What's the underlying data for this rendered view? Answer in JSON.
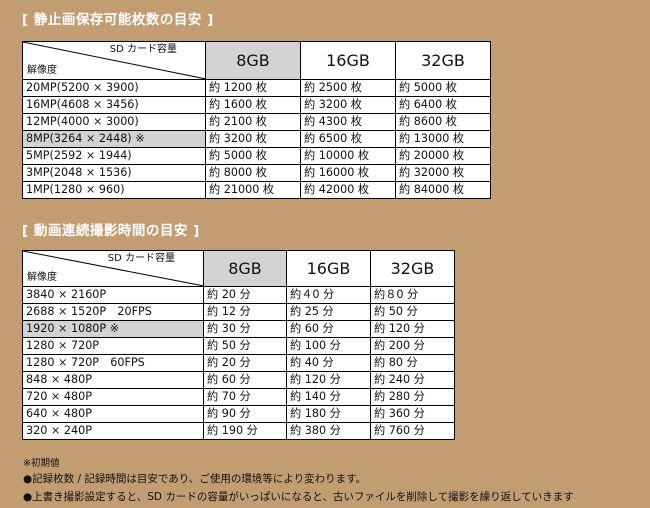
{
  "still": {
    "title": "[ 静止画保存可能枚数の目安 ]",
    "header_top": "SD カード容量",
    "header_bottom": "解像度",
    "capacities": [
      "8GB",
      "16GB",
      "32GB"
    ],
    "rows": [
      {
        "res": "20MP(5200 × 3900)",
        "v": [
          "約 1200 枚",
          "約 2500 枚",
          "約 5000 枚"
        ],
        "hl": false
      },
      {
        "res": "16MP(4608 × 3456)",
        "v": [
          "約 1600 枚",
          "約 3200 枚",
          "約 6400 枚"
        ],
        "hl": false
      },
      {
        "res": "12MP(4000 × 3000)",
        "v": [
          "約 2100 枚",
          "約 4300 枚",
          "約 8600 枚"
        ],
        "hl": false
      },
      {
        "res": "8MP(3264 × 2448) ※",
        "v": [
          "約 3200 枚",
          "約 6500 枚",
          "約 13000 枚"
        ],
        "hl": true
      },
      {
        "res": "5MP(2592 × 1944)",
        "v": [
          "約 5000 枚",
          "約 10000 枚",
          "約 20000 枚"
        ],
        "hl": false
      },
      {
        "res": "3MP(2048 × 1536)",
        "v": [
          "約 8000 枚",
          "約 16000 枚",
          "約 32000 枚"
        ],
        "hl": false
      },
      {
        "res": "1MP(1280 × 960)",
        "v": [
          "約 21000 枚",
          "約 42000 枚",
          "約 84000 枚"
        ],
        "hl": false
      }
    ]
  },
  "video": {
    "title": "[ 動画連続撮影時間の目安 ]",
    "header_top": "SD カード容量",
    "header_bottom": "解像度",
    "capacities": [
      "8GB",
      "16GB",
      "32GB"
    ],
    "rows": [
      {
        "res": "3840 × 2160P",
        "v": [
          "約 20 分",
          "約４0 分",
          "約８0 分"
        ],
        "hl": false
      },
      {
        "res": "2688 × 1520P　20FPS",
        "v": [
          "約 12 分",
          "約 25 分",
          "約 50 分"
        ],
        "hl": false
      },
      {
        "res": "1920 × 1080P ※",
        "v": [
          "約 30 分",
          "約 60 分",
          "約 120 分"
        ],
        "hl": true
      },
      {
        "res": "1280 × 720P",
        "v": [
          "約 50 分",
          "約 100 分",
          "約 200 分"
        ],
        "hl": false
      },
      {
        "res": "1280 × 720P　60FPS",
        "v": [
          "約 20 分",
          "約 40 分",
          "約 80 分"
        ],
        "hl": false
      },
      {
        "res": "848 × 480P",
        "v": [
          "約 60 分",
          "約 120 分",
          "約 240 分"
        ],
        "hl": false
      },
      {
        "res": "720 × 480P",
        "v": [
          "約 70 分",
          "約 140 分",
          "約 280 分"
        ],
        "hl": false
      },
      {
        "res": "640 × 480P",
        "v": [
          "約 90 分",
          "約 180 分",
          "約 360 分"
        ],
        "hl": false
      },
      {
        "res": "320 × 240P",
        "v": [
          "約 190 分",
          "約 380 分",
          "約 760 分"
        ],
        "hl": false
      }
    ]
  },
  "notes": {
    "mark": "※初期値",
    "line1": "●記録枚数 / 記録時間は目安であり、ご使用の環境等により変わります。",
    "line2": "●上書き撮影設定すると、SD カードの容量がいっぱいになると、古いファイルを削除して撮影を繰り返していきます"
  },
  "colors": {
    "background": "#c29d72",
    "highlight": "#d3d3d3",
    "title_text": "#ffffff"
  }
}
